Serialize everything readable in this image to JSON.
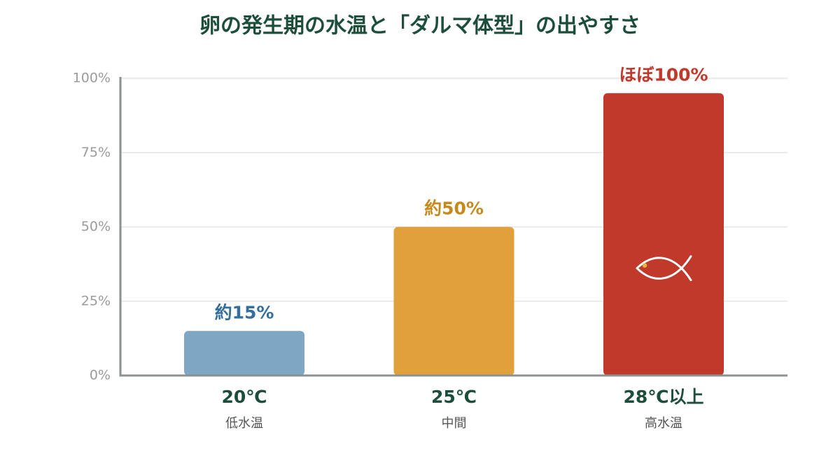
{
  "chart_data": {
    "type": "bar",
    "title": "卵の発生期の水温と「ダルマ体型」の出やすさ",
    "xlabel": "",
    "ylabel": "",
    "categories": [
      "20℃",
      "25℃",
      "28℃以上"
    ],
    "category_sublabels": [
      "低水温",
      "中間",
      "高水温"
    ],
    "values": [
      15,
      50,
      95
    ],
    "data_labels": [
      "約15%",
      "約50%",
      "ほぼ100%"
    ],
    "ylim": [
      0,
      100
    ],
    "yticks": [
      0,
      25,
      50,
      75,
      100
    ],
    "ytick_labels": [
      "0%",
      "25%",
      "50%",
      "75%",
      "100%"
    ],
    "grid": true,
    "bar_icons": [
      null,
      null,
      "fish-icon"
    ],
    "colors": {
      "bars": [
        "#7fa6c3",
        "#e0a03b",
        "#c0392b"
      ],
      "data_labels": [
        "#336e9c",
        "#c68a1c",
        "#c0392b"
      ],
      "title": "#1d4d3b",
      "category_labels": "#1d4d3b",
      "sublabels": "#555555",
      "ticks": "#9b9b9b",
      "grid": "#e4e4e4",
      "axis": "#8a9290",
      "icon_stroke": "#ffffff",
      "icon_eye": "#e2b73c"
    }
  }
}
